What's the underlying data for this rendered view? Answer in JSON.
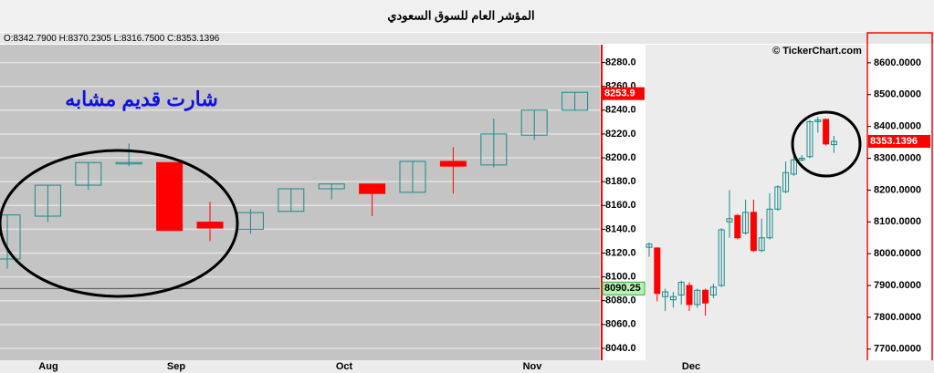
{
  "header": {
    "title": "المؤشر العام للسوق السعودي",
    "ohlc": "O:8342.7900 H:8370.2305 L:8316.7500 C:8353.1396"
  },
  "chart_data": [
    {
      "type": "candlestick",
      "annotation": "شارت قديم مشابه",
      "up_color": "#1a8a8a",
      "down_color": "#ff0000",
      "open": [
        8115,
        8151,
        8177,
        8195,
        8196,
        8146,
        8140,
        8155,
        8174,
        8178,
        8171,
        8197,
        8194,
        8219,
        8240
      ],
      "close": [
        8152,
        8177,
        8196,
        8196,
        8139,
        8141,
        8154,
        8174,
        8178,
        8170,
        8197,
        8193,
        8220,
        8240,
        8255
      ],
      "high": [
        8152,
        8177,
        8196,
        8212,
        8196,
        8163,
        8157,
        8174,
        8178,
        8178,
        8197,
        8209,
        8233,
        8240,
        8255
      ],
      "low": [
        8107,
        8146,
        8173,
        8193,
        8139,
        8130,
        8136,
        8155,
        8165,
        8151,
        8171,
        8170,
        8192,
        8215,
        8240
      ],
      "x_labels": [
        "Aug",
        "Sep",
        "Oct",
        "Nov"
      ],
      "ylim": [
        8030,
        8295
      ],
      "yticks": [
        {
          "value": 8040,
          "label": "8040.0"
        },
        {
          "value": 8060,
          "label": "8060.0"
        },
        {
          "value": 8080,
          "label": "8080.0"
        },
        {
          "value": 8100,
          "label": "8100.0"
        },
        {
          "value": 8120,
          "label": "8120.0"
        },
        {
          "value": 8140,
          "label": "8140.0"
        },
        {
          "value": 8160,
          "label": "8160.0"
        },
        {
          "value": 8180,
          "label": "8180.0"
        },
        {
          "value": 8200,
          "label": "8200.0"
        },
        {
          "value": 8220,
          "label": "8220.0"
        },
        {
          "value": 8240,
          "label": "8240.0"
        },
        {
          "value": 8260,
          "label": "8260.0"
        },
        {
          "value": 8280,
          "label": "8280.0"
        }
      ],
      "last_price": 8253.9,
      "hline": 8090.25,
      "grid": true
    },
    {
      "type": "candlestick",
      "watermark": "© TickerChart.com",
      "up_color": "#1a8a8a",
      "down_color": "#ff0000",
      "open": [
        8020,
        8018,
        7865,
        7855,
        7870,
        7900,
        7840,
        7885,
        7870,
        7900,
        8100,
        8120,
        8065,
        8130,
        8010,
        8050,
        8140,
        8195,
        8250,
        8295,
        8305,
        8415,
        8422,
        8342.79
      ],
      "close": [
        8030,
        7875,
        7880,
        7865,
        7910,
        7840,
        7885,
        7845,
        7895,
        8075,
        8110,
        8050,
        8130,
        8010,
        8050,
        8140,
        8210,
        8255,
        8295,
        8300,
        8415,
        8420,
        8345,
        8353.1396
      ],
      "high": [
        8035,
        8020,
        7890,
        7880,
        7915,
        7910,
        7890,
        7890,
        7905,
        8080,
        8200,
        8125,
        8170,
        8170,
        8110,
        8190,
        8215,
        8290,
        8310,
        8310,
        8420,
        8430,
        8425,
        8370.2305
      ],
      "low": [
        7990,
        7850,
        7820,
        7830,
        7840,
        7820,
        7830,
        7805,
        7860,
        7895,
        8050,
        8045,
        8060,
        8005,
        8005,
        8045,
        8135,
        8190,
        8245,
        8290,
        8300,
        8380,
        8340,
        8316.75
      ],
      "x_labels": [
        "Dec"
      ],
      "ylim": [
        7665,
        8657
      ],
      "yticks": [
        {
          "value": 7700,
          "label": "7700.0000"
        },
        {
          "value": 7800,
          "label": "7800.0000"
        },
        {
          "value": 7900,
          "label": "7900.0000"
        },
        {
          "value": 8000,
          "label": "8000.0000"
        },
        {
          "value": 8100,
          "label": "8100.0000"
        },
        {
          "value": 8200,
          "label": "8200.0000"
        },
        {
          "value": 8300,
          "label": "8300.0000"
        },
        {
          "value": 8400,
          "label": "8400.0000"
        },
        {
          "value": 8500,
          "label": "8500.0000"
        },
        {
          "value": 8600,
          "label": "8600.0000"
        }
      ],
      "last_price": 8353.1396,
      "grid": false
    }
  ]
}
